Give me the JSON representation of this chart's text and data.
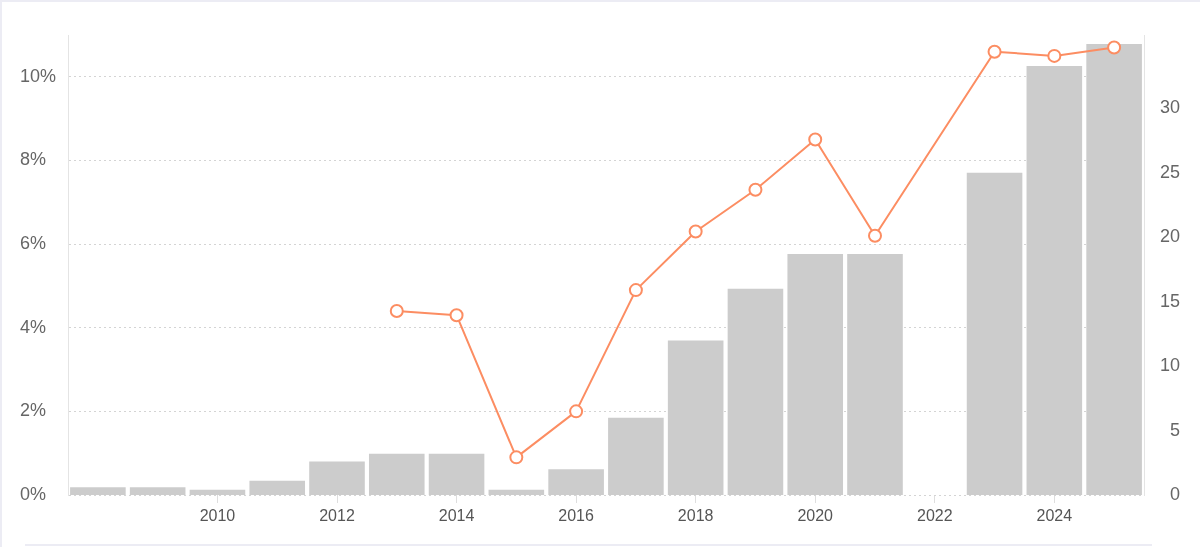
{
  "chart_data": {
    "type": "bar",
    "x": [
      2008,
      2009,
      2010,
      2011,
      2012,
      2013,
      2014,
      2015,
      2016,
      2017,
      2018,
      2019,
      2020,
      2021,
      2023,
      2024,
      2025
    ],
    "series": [
      {
        "axis": "y2",
        "color": "#cccccc",
        "values": [
          0.6,
          0.6,
          0.4,
          1.1,
          2.6,
          3.2,
          3.2,
          0.4,
          2,
          6,
          12,
          16,
          18.7,
          18.7,
          25,
          33.3,
          35
        ]
      },
      {
        "type": "line",
        "color": "#fc8d62",
        "x": [
          2013,
          2014,
          2015,
          2016,
          2017,
          2018,
          2019,
          2020,
          2021,
          2023,
          2024,
          2025
        ],
        "values": [
          4.4,
          4.3,
          0.9,
          2,
          4.9,
          6.3,
          7.3,
          8.5,
          6.2,
          10.6,
          10.5,
          10.7
        ]
      }
    ],
    "xlim": [
      2007.5,
      2025.5
    ],
    "xticks": [
      2010,
      2012,
      2014,
      2016,
      2018,
      2020,
      2022,
      2024
    ],
    "ylim": [
      0,
      11
    ],
    "yticks": [
      {
        "value": 0,
        "label": "0%"
      },
      {
        "value": 2,
        "label": "2%"
      },
      {
        "value": 4,
        "label": "4%"
      },
      {
        "value": 6,
        "label": "6%"
      },
      {
        "value": 8,
        "label": "8%"
      },
      {
        "value": 10,
        "label": "10%"
      }
    ],
    "y2lim": [
      0,
      35.7
    ],
    "y2ticks": [
      0,
      5,
      10,
      15,
      20,
      25,
      30
    ],
    "grid": "y",
    "marker": "circle"
  }
}
